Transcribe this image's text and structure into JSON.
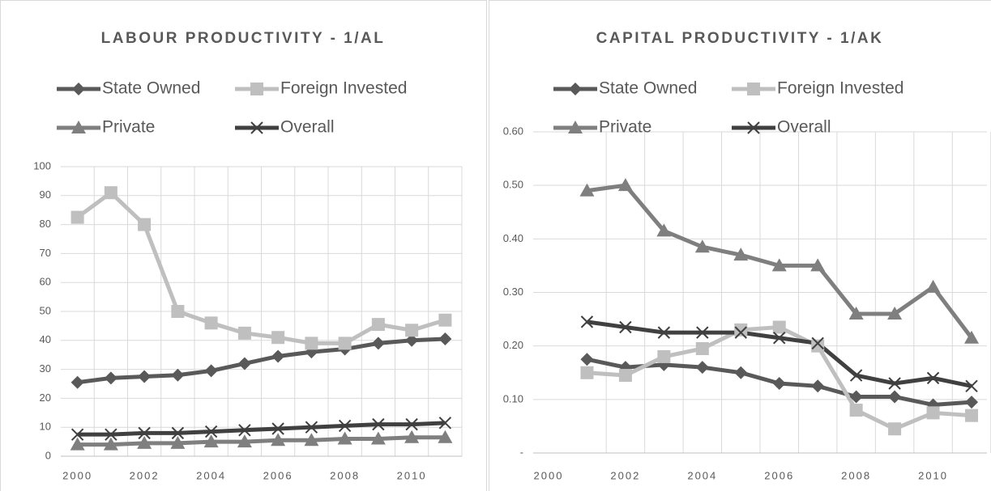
{
  "chart_data": [
    {
      "type": "line",
      "title": "LABOUR PRODUCTIVITY - 1/AL",
      "x": [
        2000,
        2001,
        2002,
        2003,
        2004,
        2005,
        2006,
        2007,
        2008,
        2009,
        2010,
        2011
      ],
      "xlim": [
        1999.5,
        2011.5
      ],
      "xticks": [
        2000,
        2002,
        2004,
        2006,
        2008,
        2010
      ],
      "ylim": [
        0,
        100
      ],
      "yticks": [
        0,
        10,
        20,
        30,
        40,
        50,
        60,
        70,
        80,
        90,
        100
      ],
      "grid": true,
      "series": [
        {
          "name": "State Owned",
          "color": "#595959",
          "marker": "diamond",
          "values": [
            25.5,
            27,
            27.5,
            28,
            29.5,
            32,
            34.5,
            36,
            37,
            39,
            40,
            40.5
          ]
        },
        {
          "name": "Foreign Invested",
          "color": "#bfbfbf",
          "marker": "square",
          "values": [
            82.5,
            91,
            80,
            50,
            46,
            42.5,
            41,
            39,
            39,
            45.5,
            43.5,
            47
          ]
        },
        {
          "name": "Private",
          "color": "#7f7f7f",
          "marker": "triangle",
          "values": [
            4,
            4,
            4.5,
            4.5,
            5,
            5,
            5.5,
            5.5,
            6,
            6,
            6.5,
            6.5
          ]
        },
        {
          "name": "Overall",
          "color": "#404040",
          "marker": "x",
          "values": [
            7.5,
            7.5,
            8,
            8,
            8.5,
            9,
            9.5,
            10,
            10.5,
            11,
            11,
            11.5
          ]
        }
      ]
    },
    {
      "type": "line",
      "title": "CAPITAL PRODUCTIVITY - 1/AK",
      "x": [
        2001,
        2002,
        2003,
        2004,
        2005,
        2006,
        2007,
        2008,
        2009,
        2010,
        2011
      ],
      "xlim": [
        1999.6,
        2011.4
      ],
      "xticks": [
        2000,
        2002,
        2004,
        2006,
        2008,
        2010
      ],
      "ylim": [
        0,
        0.6
      ],
      "yticks": [
        {
          "value": 0,
          "label": "-"
        },
        {
          "value": 0.1,
          "label": "0.10"
        },
        {
          "value": 0.2,
          "label": "0.20"
        },
        {
          "value": 0.3,
          "label": "0.30"
        },
        {
          "value": 0.4,
          "label": "0.40"
        },
        {
          "value": 0.5,
          "label": "0.50"
        },
        {
          "value": 0.6,
          "label": "0.60"
        }
      ],
      "grid": true,
      "series": [
        {
          "name": "State Owned",
          "color": "#595959",
          "marker": "diamond",
          "values": [
            0.175,
            0.16,
            0.165,
            0.16,
            0.15,
            0.13,
            0.125,
            0.105,
            0.105,
            0.09,
            0.095
          ]
        },
        {
          "name": "Foreign Invested",
          "color": "#bfbfbf",
          "marker": "square",
          "values": [
            0.15,
            0.145,
            0.18,
            0.195,
            0.23,
            0.235,
            0.2,
            0.08,
            0.045,
            0.075,
            0.07
          ]
        },
        {
          "name": "Private",
          "color": "#7f7f7f",
          "marker": "triangle",
          "values": [
            0.49,
            0.5,
            0.415,
            0.385,
            0.37,
            0.35,
            0.35,
            0.26,
            0.26,
            0.31,
            0.215
          ]
        },
        {
          "name": "Overall",
          "color": "#404040",
          "marker": "x",
          "values": [
            0.245,
            0.235,
            0.225,
            0.225,
            0.225,
            0.215,
            0.205,
            0.145,
            0.13,
            0.14,
            0.125
          ]
        }
      ]
    }
  ]
}
